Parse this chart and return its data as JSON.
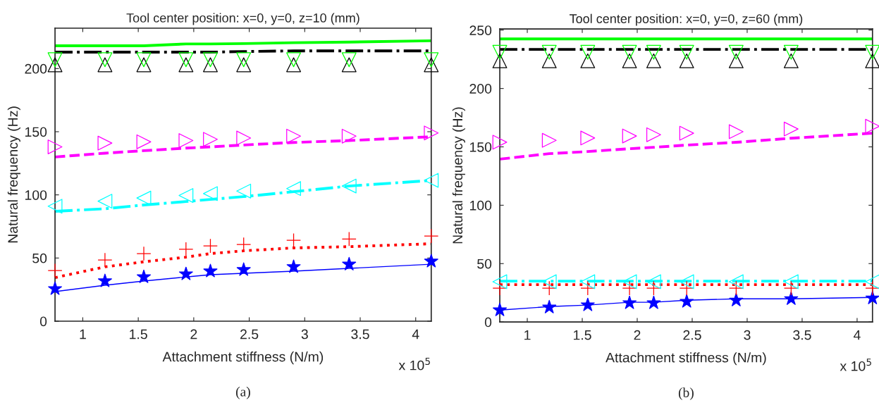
{
  "chart_data": [
    {
      "type": "line",
      "title": "Tool center position: x=0, y=0, z=10 (mm)",
      "xlabel": "Attachment stiffness (N/m)",
      "ylabel": "Natural frequency (Hz)",
      "x": [
        0.75,
        1.2,
        1.55,
        1.93,
        2.15,
        2.45,
        2.9,
        3.4,
        4.14
      ],
      "xlim": [
        0.75,
        4.14
      ],
      "xticks": [
        1,
        1.5,
        2,
        2.5,
        3,
        3.5,
        4
      ],
      "ylim": [
        0,
        232
      ],
      "yticks": [
        0,
        50,
        100,
        150,
        200
      ],
      "grid": false,
      "annotations": [
        "x 10$^{5}$",
        "(a)"
      ],
      "series": [
        {
          "color": "#0000ff",
          "line_style": "solid",
          "marker": "none",
          "values": [
            23.4,
            28.4,
            31.8,
            35,
            36.8,
            37.9,
            39.6,
            41.8,
            45.1
          ]
        },
        {
          "color": "#ff0000",
          "line_style": "dotted",
          "marker": "none",
          "values": [
            34.5,
            43,
            47,
            50.7,
            53.5,
            55.7,
            58,
            59,
            61.3
          ]
        },
        {
          "color": "#00ffff",
          "line_style": "dashdot",
          "marker": "none",
          "values": [
            87,
            89,
            92,
            94.7,
            96.4,
            98.6,
            102.5,
            107,
            111.4
          ]
        },
        {
          "color": "#ff00ff",
          "line_style": "dashed",
          "marker": "none",
          "values": [
            130,
            133,
            135,
            137,
            138,
            139.5,
            141.5,
            143,
            146
          ]
        },
        {
          "color": "#000000",
          "line_style": "dashdot",
          "marker": "none",
          "values": [
            213,
            213,
            213,
            213,
            213,
            213.5,
            214,
            214,
            214
          ]
        },
        {
          "color": "#00ff00",
          "line_style": "solid",
          "marker": "none",
          "values": [
            218,
            218,
            218,
            219.5,
            219.5,
            219.8,
            220.5,
            221,
            222
          ]
        },
        {
          "type": "scatter",
          "color": "#0000ff",
          "marker": "star",
          "values": [
            25.6,
            31.8,
            35,
            37.3,
            39.6,
            40.7,
            43,
            45,
            47.4
          ]
        },
        {
          "type": "scatter",
          "color": "#ff0000",
          "marker": "cross",
          "values": [
            40,
            48.5,
            53.5,
            57,
            59.6,
            60.7,
            64,
            65,
            67.4
          ]
        },
        {
          "type": "scatter",
          "color": "#00ffff",
          "marker": "triangle_left",
          "values": [
            91,
            95,
            97.5,
            99.5,
            101,
            103,
            105,
            107,
            111.5
          ]
        },
        {
          "type": "scatter",
          "color": "#ff00ff",
          "marker": "triangle_right",
          "values": [
            138,
            141,
            142,
            143,
            144,
            145,
            146.5,
            146.5,
            149
          ]
        },
        {
          "type": "scatter",
          "color": "#000000",
          "marker": "triangle",
          "values": [
            203,
            203,
            203,
            203,
            203,
            203,
            203,
            203,
            203
          ]
        },
        {
          "type": "scatter",
          "color": "#00ff00",
          "marker": "triangle_down",
          "values": [
            207,
            207,
            207,
            207,
            207,
            207,
            207,
            207,
            207
          ]
        }
      ]
    },
    {
      "type": "line",
      "title": "Tool center position: x=0, y=0, z=60 (mm)",
      "xlabel": "Attachment stiffness (N/m)",
      "ylabel": "Natural frequency (Hz)",
      "x": [
        0.75,
        1.2,
        1.55,
        1.93,
        2.15,
        2.45,
        2.9,
        3.4,
        4.14
      ],
      "xlim": [
        0.75,
        4.14
      ],
      "xticks": [
        1,
        1.5,
        2,
        2.5,
        3,
        3.5,
        4
      ],
      "ylim": [
        0,
        251
      ],
      "yticks": [
        0,
        50,
        100,
        150,
        200,
        250
      ],
      "grid": false,
      "annotations": [
        "x 10$^{5}$",
        "(b)"
      ],
      "series": [
        {
          "color": "#0000ff",
          "line_style": "solid",
          "marker": "none",
          "values": [
            10.2,
            13.2,
            14.5,
            16.9,
            16.9,
            18.6,
            19.8,
            19.8,
            21
          ]
        },
        {
          "color": "#ff0000",
          "line_style": "dotted",
          "marker": "none",
          "values": [
            32,
            32,
            32,
            32,
            32,
            32,
            32,
            32,
            32
          ]
        },
        {
          "color": "#00ffff",
          "line_style": "dashdot",
          "marker": "none",
          "values": [
            35,
            35,
            35,
            35,
            35,
            35,
            35,
            35,
            35
          ]
        },
        {
          "color": "#ff00ff",
          "line_style": "dashed",
          "marker": "none",
          "values": [
            139.5,
            144.2,
            146,
            148.4,
            149.6,
            151.5,
            153.9,
            157.4,
            161.7
          ]
        },
        {
          "color": "#000000",
          "line_style": "dashdot",
          "marker": "none",
          "values": [
            233.5,
            233.5,
            233.5,
            233.5,
            233.5,
            233.5,
            233.5,
            233.5,
            233.5
          ]
        },
        {
          "color": "#00ff00",
          "line_style": "solid",
          "marker": "none",
          "values": [
            242.5,
            242.5,
            242.5,
            242.5,
            242.5,
            242.5,
            242.5,
            242.5,
            242.5
          ]
        },
        {
          "type": "scatter",
          "color": "#0000ff",
          "marker": "star",
          "values": [
            10.2,
            12.6,
            14.5,
            16.3,
            16.3,
            17.5,
            18.6,
            19.8,
            20.4
          ]
        },
        {
          "type": "scatter",
          "color": "#ff0000",
          "marker": "cross",
          "values": [
            29,
            29,
            29,
            29,
            29,
            29,
            29,
            29,
            29
          ]
        },
        {
          "type": "scatter",
          "color": "#00ffff",
          "marker": "triangle_left",
          "values": [
            34.5,
            34.5,
            34.5,
            34.5,
            34.5,
            34.5,
            34.5,
            34.5,
            34.5
          ]
        },
        {
          "type": "scatter",
          "color": "#ff00ff",
          "marker": "triangle_right",
          "values": [
            154,
            155.6,
            157.6,
            159.3,
            160.4,
            161.7,
            163,
            165.3,
            167.7
          ]
        },
        {
          "type": "scatter",
          "color": "#000000",
          "marker": "triangle",
          "values": [
            223.7,
            223.7,
            223.7,
            223.7,
            223.7,
            223.7,
            223.7,
            223.7,
            223.7
          ]
        },
        {
          "type": "scatter",
          "color": "#00ff00",
          "marker": "triangle_down",
          "values": [
            231,
            231,
            231,
            231,
            231,
            231,
            231,
            231,
            231
          ]
        }
      ]
    }
  ]
}
